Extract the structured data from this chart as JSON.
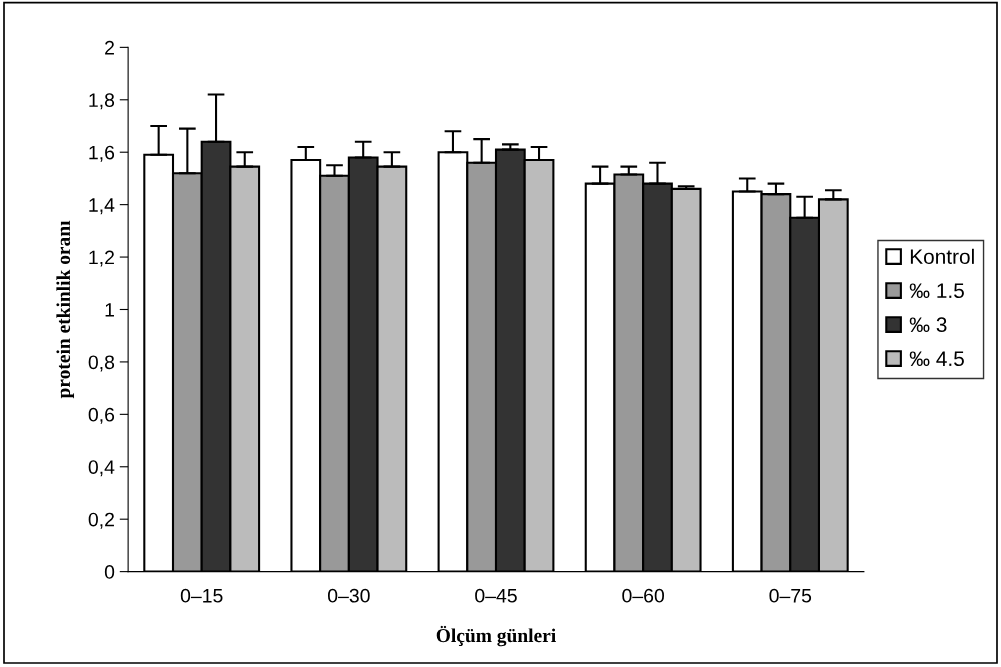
{
  "chart_data": {
    "type": "bar",
    "xlabel": "Ölçüm günleri",
    "ylabel": "protein etkinlik oranı",
    "categories": [
      "0–15",
      "0–30",
      "0–45",
      "0–60",
      "0–75"
    ],
    "series": [
      {
        "name": "Kontrol",
        "color": "#ffffff",
        "values": [
          1.59,
          1.57,
          1.6,
          1.48,
          1.45
        ],
        "errors": [
          [
            1.59,
            1.7
          ],
          [
            1.57,
            1.62
          ],
          [
            1.6,
            1.68
          ],
          [
            1.48,
            1.545
          ],
          [
            1.45,
            1.5
          ]
        ]
      },
      {
        "name": "‰ 1.5",
        "color": "#999999",
        "values": [
          1.52,
          1.51,
          1.56,
          1.515,
          1.44
        ],
        "errors": [
          [
            1.52,
            1.69
          ],
          [
            1.51,
            1.55
          ],
          [
            1.56,
            1.65
          ],
          [
            1.515,
            1.545
          ],
          [
            1.44,
            1.48
          ]
        ]
      },
      {
        "name": "‰ 3",
        "color": "#333333",
        "values": [
          1.64,
          1.58,
          1.61,
          1.48,
          1.35
        ],
        "errors": [
          [
            1.64,
            1.82
          ],
          [
            1.58,
            1.64
          ],
          [
            1.61,
            1.63
          ],
          [
            1.48,
            1.56
          ],
          [
            1.35,
            1.43
          ]
        ]
      },
      {
        "name": "‰ 4.5",
        "color": "#bbbbbb",
        "values": [
          1.545,
          1.545,
          1.57,
          1.46,
          1.42
        ],
        "errors": [
          [
            1.545,
            1.6
          ],
          [
            1.545,
            1.6
          ],
          [
            1.57,
            1.62
          ],
          [
            1.46,
            1.47
          ],
          [
            1.42,
            1.455
          ]
        ]
      }
    ],
    "ylim": [
      0,
      2
    ],
    "yticks": [
      0,
      {
        "value": 0.2,
        "label": "0,2"
      },
      {
        "value": 0.4,
        "label": "0,4"
      },
      {
        "value": 0.6,
        "label": "0,6"
      },
      {
        "value": 0.8,
        "label": "0,8"
      },
      1,
      {
        "value": 1.2,
        "label": "1,2"
      },
      {
        "value": 1.4,
        "label": "1,4"
      },
      {
        "value": 1.6,
        "label": "1,6"
      },
      {
        "value": 1.8,
        "label": "1,8"
      },
      2
    ],
    "grid": false,
    "legend": "right"
  }
}
